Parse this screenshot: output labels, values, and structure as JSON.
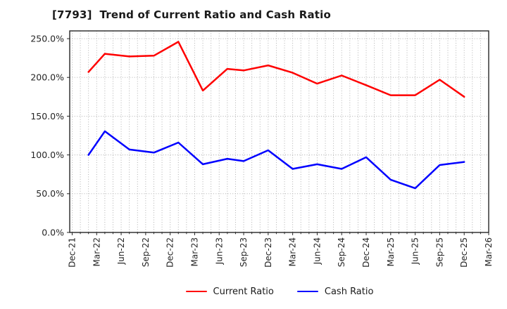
{
  "header": {
    "title": "[7793]  Trend of Current Ratio and Cash Ratio"
  },
  "chart_data": {
    "type": "line",
    "title": "[7793]  Trend of Current Ratio and Cash Ratio",
    "x_axis": {
      "kind": "time, months since Dec-2021",
      "xlim_months": [
        -0.3,
        51
      ],
      "tick_months": [
        0,
        3,
        6,
        9,
        12,
        15,
        18,
        21,
        24,
        27,
        30,
        33,
        36,
        39,
        42,
        45,
        48,
        51
      ],
      "tick_labels": [
        "Dec-21",
        "Mar-22",
        "Jun-22",
        "Sep-22",
        "Dec-22",
        "Mar-23",
        "Jun-23",
        "Sep-23",
        "Dec-23",
        "Mar-24",
        "Jun-24",
        "Sep-24",
        "Dec-24",
        "Mar-25",
        "Jun-25",
        "Sep-25",
        "Dec-25",
        "Mar-26"
      ],
      "tick_label_rotation_deg": 90,
      "minor_grid_every_month": true
    },
    "y_axis": {
      "ylim": [
        0,
        260
      ],
      "tick_values": [
        0,
        50,
        100,
        150,
        200,
        250
      ],
      "tick_labels": [
        "0.0%",
        "50.0%",
        "100.0%",
        "150.0%",
        "200.0%",
        "250.0%"
      ]
    },
    "points": {
      "months": [
        2,
        4,
        7,
        10,
        13,
        16,
        19,
        21,
        24,
        27,
        30,
        33,
        36,
        39,
        42,
        45,
        48
      ],
      "labels": [
        "Feb-22",
        "Apr-22",
        "Jul-22",
        "Oct-22",
        "Jan-23",
        "Apr-23",
        "Jul-23",
        "Sep-23",
        "Dec-23",
        "Mar-24",
        "Jun-24",
        "Sep-24",
        "Dec-24",
        "Mar-25",
        "Jun-25",
        "Sep-25",
        "Dec-25"
      ]
    },
    "series": [
      {
        "name": "Current Ratio",
        "color": "#ff0000",
        "values_percent": [
          207,
          230.5,
          227,
          228,
          246,
          183,
          211,
          209,
          215.5,
          206,
          192,
          202.5,
          190,
          177,
          177,
          197,
          175
        ]
      },
      {
        "name": "Cash Ratio",
        "color": "#0000ff",
        "values_percent": [
          100,
          130.5,
          107,
          103,
          116,
          88,
          95,
          92,
          106,
          82,
          88,
          82,
          97,
          68,
          57,
          87,
          91
        ]
      }
    ],
    "grid": true,
    "grid_style": "dotted",
    "legend_position": "bottom-center"
  },
  "legend": {
    "items": [
      {
        "label": "Current Ratio",
        "color": "#ff0000"
      },
      {
        "label": "Cash Ratio",
        "color": "#0000ff"
      }
    ]
  },
  "style": {
    "background": "#ffffff",
    "text_color": "#262626",
    "grid_color": "#a8a8a8",
    "spine_color": "#262626",
    "line_width": 2.5
  }
}
